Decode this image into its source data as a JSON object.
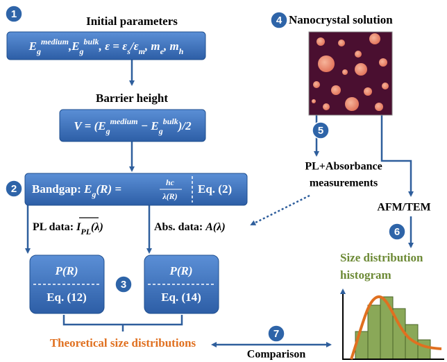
{
  "badges": [
    "1",
    "2",
    "3",
    "4",
    "5",
    "6",
    "7"
  ],
  "initial_parameters": {
    "title": "Initial parameters",
    "formula": [
      "E",
      "g",
      "medium",
      ",E",
      "g",
      "bulk",
      ", ε = ε",
      "s",
      "/ε",
      "m",
      ", m",
      "e",
      ", m",
      "h"
    ]
  },
  "barrier_height": {
    "title": "Barrier height",
    "formula": [
      "V = (E",
      "g",
      "medium",
      " − E",
      "g",
      "bulk",
      ")/2"
    ]
  },
  "bandgap": {
    "label": "Bandgap: ",
    "formula": [
      "E",
      "g",
      "(R) = "
    ],
    "numerator": "hc",
    "denominator": "λ(R)",
    "equation": "Eq. (2)"
  },
  "pl_data": {
    "label": "PL data: ",
    "formula": [
      "I",
      "PL",
      "(λ)"
    ]
  },
  "abs_data": {
    "label": "Abs. data: ",
    "formula": "A(λ)"
  },
  "model_boxes": [
    {
      "formula": "P(R)",
      "equation": "Eq. (12)"
    },
    {
      "formula": "P(R)",
      "equation": "Eq. (14)"
    }
  ],
  "theoretical": "Theoretical size distributions",
  "nanocrystal": "Nanocrystal solution",
  "measurements": [
    "PL+Absorbance",
    "measurements"
  ],
  "afm_tem": "AFM/TEM",
  "histogram_title": [
    "Size distribution",
    "histogram"
  ],
  "comparison": "Comparison"
}
